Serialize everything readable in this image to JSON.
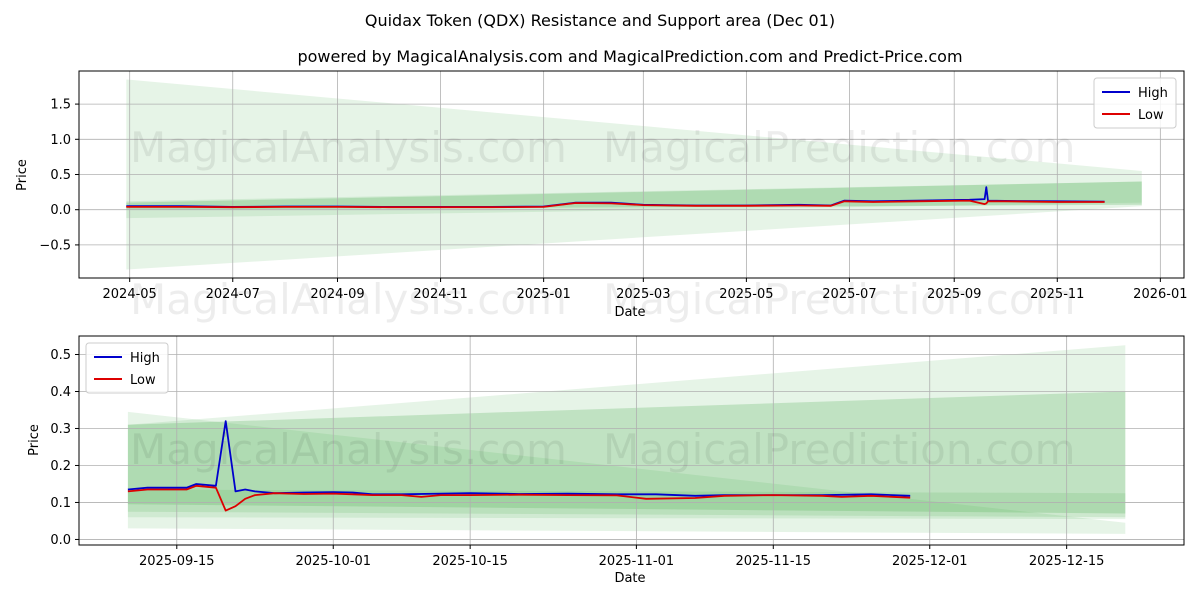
{
  "header": {
    "title": "Quidax Token (QDX) Resistance and Support area (Dec 01)",
    "subtitle": "powered by MagicalAnalysis.com and MagicalPrediction.com and Predict-Price.com"
  },
  "watermark": {
    "left": "MagicalAnalysis.com",
    "right": "MagicalPrediction.com"
  },
  "colors": {
    "high": "#0000cc",
    "low": "#dd0000",
    "band_light": "#c8e6c8",
    "band_dark": "#8fc98f"
  },
  "chart_data": [
    {
      "type": "line",
      "xlabel": "Date",
      "ylabel": "Price",
      "x_range": [
        "2024-04-01",
        "2026-01-15"
      ],
      "ylim": [
        -0.97,
        1.97
      ],
      "x_ticks": [
        "2024-05",
        "2024-07",
        "2024-09",
        "2024-11",
        "2025-01",
        "2025-03",
        "2025-05",
        "2025-07",
        "2025-09",
        "2025-11",
        "2026-01"
      ],
      "y_ticks": [
        -0.5,
        0.0,
        0.5,
        1.0,
        1.5
      ],
      "legend": {
        "position": "top-right",
        "entries": [
          "High",
          "Low"
        ]
      },
      "bands": [
        {
          "name": "light-support",
          "x": [
            "2024-04-29",
            "2025-12-21"
          ],
          "upper": [
            1.85,
            0.55
          ],
          "lower": [
            -0.85,
            0.05
          ],
          "opacity": 0.25
        },
        {
          "name": "light-resistance",
          "x": [
            "2024-04-29",
            "2025-12-21"
          ],
          "upper": [
            0.12,
            0.4
          ],
          "lower": [
            -0.12,
            0.1
          ],
          "opacity": 0.25
        },
        {
          "name": "dark-resistance",
          "x": [
            "2024-04-29",
            "2025-12-21"
          ],
          "upper": [
            0.1,
            0.4
          ],
          "lower": [
            0.0,
            0.07
          ],
          "opacity": 0.45
        }
      ],
      "series": [
        {
          "name": "High",
          "x": [
            "2024-04-29",
            "2024-06-01",
            "2024-07-01",
            "2024-08-01",
            "2024-09-01",
            "2024-10-01",
            "2024-11-01",
            "2024-12-01",
            "2025-01-01",
            "2025-01-20",
            "2025-02-10",
            "2025-03-01",
            "2025-04-01",
            "2025-05-01",
            "2025-06-01",
            "2025-06-20",
            "2025-06-28",
            "2025-07-15",
            "2025-08-10",
            "2025-09-10",
            "2025-09-19",
            "2025-09-20",
            "2025-09-21",
            "2025-10-01",
            "2025-11-01",
            "2025-11-29"
          ],
          "values": [
            0.05,
            0.05,
            0.04,
            0.045,
            0.045,
            0.04,
            0.04,
            0.04,
            0.045,
            0.1,
            0.1,
            0.07,
            0.06,
            0.06,
            0.07,
            0.06,
            0.13,
            0.12,
            0.13,
            0.14,
            0.15,
            0.32,
            0.13,
            0.125,
            0.12,
            0.115
          ]
        },
        {
          "name": "Low",
          "x": [
            "2024-04-29",
            "2024-06-01",
            "2024-07-01",
            "2024-08-01",
            "2024-09-01",
            "2024-10-01",
            "2024-11-01",
            "2024-12-01",
            "2025-01-01",
            "2025-01-20",
            "2025-02-10",
            "2025-03-01",
            "2025-04-01",
            "2025-05-01",
            "2025-06-01",
            "2025-06-20",
            "2025-06-28",
            "2025-07-15",
            "2025-08-10",
            "2025-09-10",
            "2025-09-19",
            "2025-09-20",
            "2025-09-21",
            "2025-10-01",
            "2025-11-01",
            "2025-11-29"
          ],
          "values": [
            0.04,
            0.04,
            0.035,
            0.04,
            0.04,
            0.035,
            0.035,
            0.035,
            0.04,
            0.095,
            0.09,
            0.065,
            0.055,
            0.055,
            0.06,
            0.055,
            0.12,
            0.11,
            0.12,
            0.13,
            0.08,
            0.09,
            0.12,
            0.12,
            0.11,
            0.11
          ]
        }
      ]
    },
    {
      "type": "line",
      "xlabel": "Date",
      "ylabel": "Price",
      "x_range": [
        "2025-09-05",
        "2025-12-27"
      ],
      "ylim": [
        -0.015,
        0.55
      ],
      "x_ticks": [
        "2025-09-15",
        "2025-10-01",
        "2025-10-15",
        "2025-11-01",
        "2025-11-15",
        "2025-12-01",
        "2025-12-15"
      ],
      "y_ticks": [
        0.0,
        0.1,
        0.2,
        0.3,
        0.4,
        0.5
      ],
      "legend": {
        "position": "top-left",
        "entries": [
          "High",
          "Low"
        ]
      },
      "bands": [
        {
          "name": "light-upper",
          "x": [
            "2025-09-10",
            "2025-12-21"
          ],
          "upper": [
            0.31,
            0.525
          ],
          "lower": [
            0.06,
            0.055
          ],
          "opacity": 0.25
        },
        {
          "name": "light-lower",
          "x": [
            "2025-09-10",
            "2025-12-21"
          ],
          "upper": [
            0.345,
            0.045
          ],
          "lower": [
            0.03,
            0.015
          ],
          "opacity": 0.25
        },
        {
          "name": "dark-upper",
          "x": [
            "2025-09-10",
            "2025-12-21"
          ],
          "upper": [
            0.31,
            0.4
          ],
          "lower": [
            0.095,
            0.07
          ],
          "opacity": 0.45
        },
        {
          "name": "dark-lower",
          "x": [
            "2025-09-10",
            "2025-12-21"
          ],
          "upper": [
            0.135,
            0.125
          ],
          "lower": [
            0.075,
            0.06
          ],
          "opacity": 0.3
        }
      ],
      "series": [
        {
          "name": "High",
          "x": [
            "2025-09-10",
            "2025-09-12",
            "2025-09-14",
            "2025-09-16",
            "2025-09-17",
            "2025-09-19",
            "2025-09-20",
            "2025-09-21",
            "2025-09-22",
            "2025-09-23",
            "2025-09-25",
            "2025-09-28",
            "2025-10-01",
            "2025-10-03",
            "2025-10-05",
            "2025-10-08",
            "2025-10-12",
            "2025-10-15",
            "2025-10-20",
            "2025-10-25",
            "2025-10-30",
            "2025-11-03",
            "2025-11-07",
            "2025-11-10",
            "2025-11-15",
            "2025-11-20",
            "2025-11-25",
            "2025-11-29"
          ],
          "values": [
            0.135,
            0.14,
            0.14,
            0.14,
            0.15,
            0.145,
            0.32,
            0.13,
            0.135,
            0.13,
            0.125,
            0.127,
            0.128,
            0.127,
            0.122,
            0.122,
            0.124,
            0.125,
            0.123,
            0.124,
            0.122,
            0.122,
            0.118,
            0.12,
            0.12,
            0.12,
            0.122,
            0.118
          ]
        },
        {
          "name": "Low",
          "x": [
            "2025-09-10",
            "2025-09-12",
            "2025-09-14",
            "2025-09-16",
            "2025-09-17",
            "2025-09-19",
            "2025-09-20",
            "2025-09-21",
            "2025-09-22",
            "2025-09-23",
            "2025-09-25",
            "2025-09-28",
            "2025-10-01",
            "2025-10-03",
            "2025-10-05",
            "2025-10-08",
            "2025-10-10",
            "2025-10-12",
            "2025-10-15",
            "2025-10-20",
            "2025-10-25",
            "2025-10-30",
            "2025-11-02",
            "2025-11-07",
            "2025-11-10",
            "2025-11-15",
            "2025-11-20",
            "2025-11-22",
            "2025-11-25",
            "2025-11-29"
          ],
          "values": [
            0.13,
            0.135,
            0.135,
            0.135,
            0.145,
            0.14,
            0.078,
            0.09,
            0.11,
            0.12,
            0.125,
            0.123,
            0.124,
            0.122,
            0.12,
            0.12,
            0.115,
            0.12,
            0.12,
            0.121,
            0.12,
            0.119,
            0.11,
            0.112,
            0.118,
            0.12,
            0.118,
            0.115,
            0.118,
            0.113
          ]
        }
      ]
    }
  ]
}
